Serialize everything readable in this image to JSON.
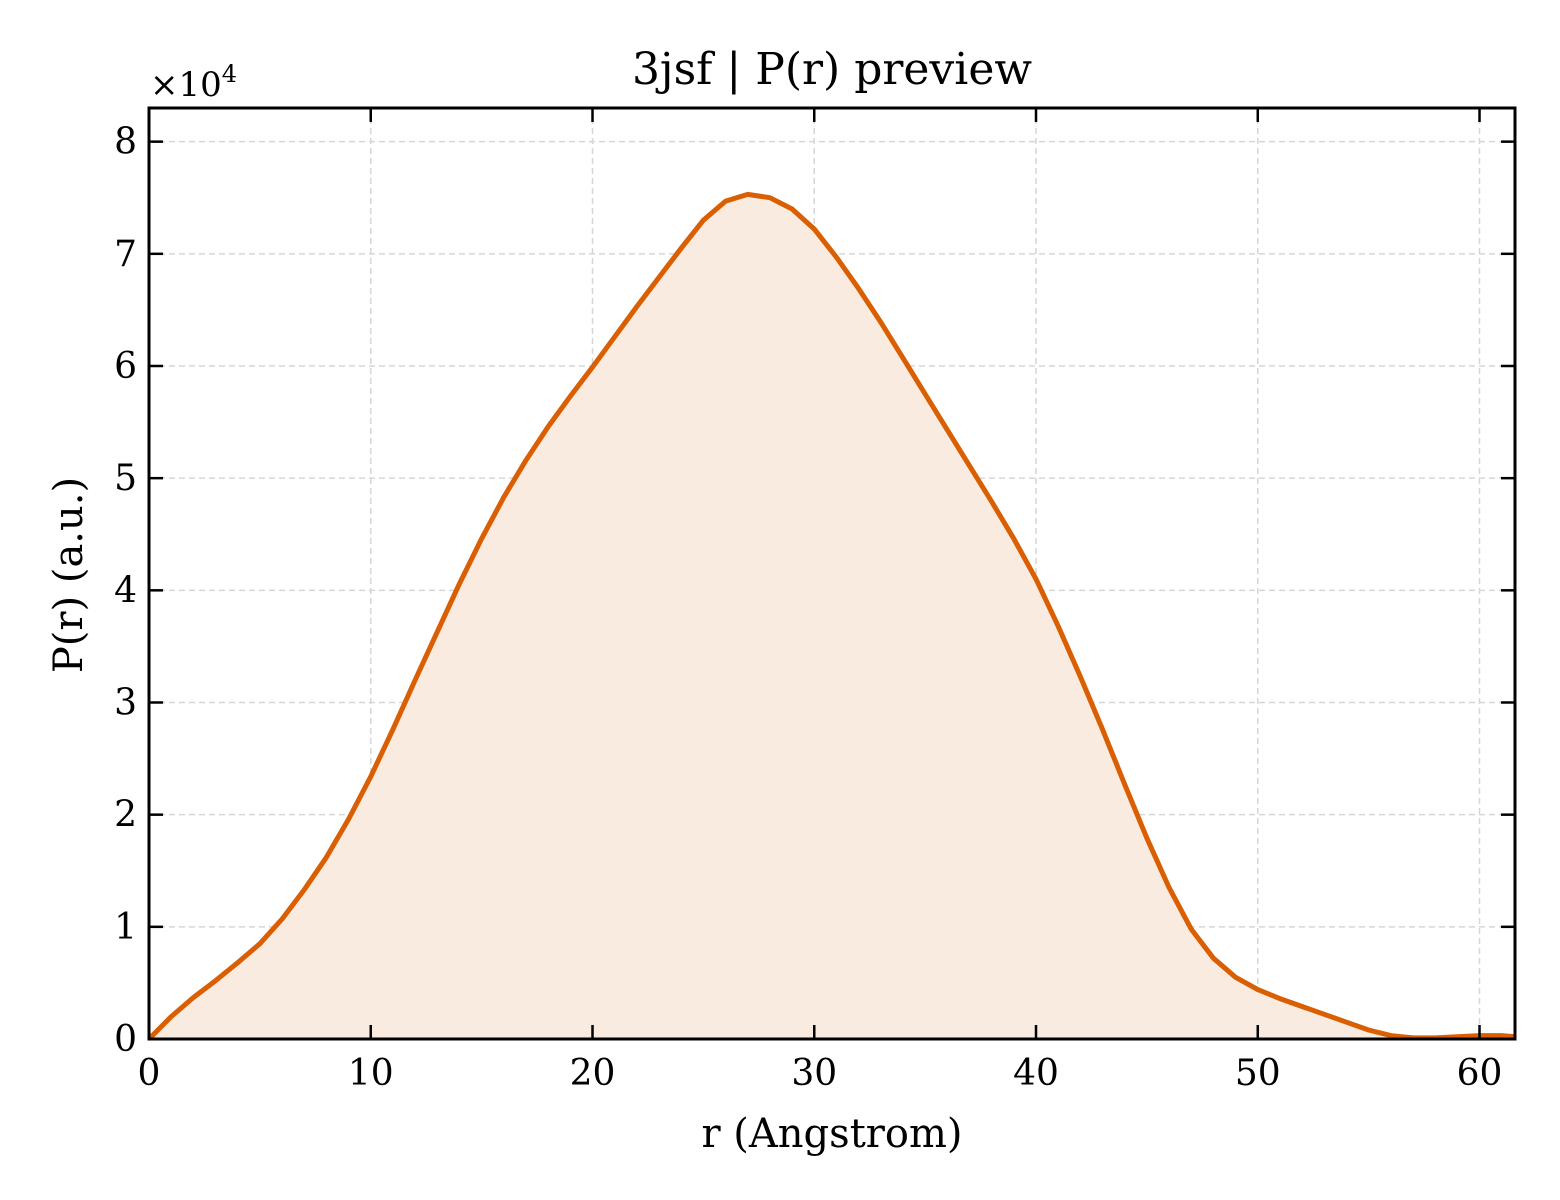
{
  "chart_data": {
    "type": "area",
    "title": "3jsf | P(r) preview",
    "xlabel": "r (Angstrom)",
    "ylabel": "P(r) (a.u.)",
    "y_multiplier_label": "×10",
    "y_multiplier_exponent": "4",
    "xlim": [
      0,
      61.6
    ],
    "ylim": [
      0,
      8.3
    ],
    "x_ticks": [
      0,
      10,
      20,
      30,
      40,
      50,
      60
    ],
    "y_ticks": [
      0,
      1,
      2,
      3,
      4,
      5,
      6,
      7,
      8
    ],
    "grid": true,
    "line_color": "#d95f02",
    "fill_color": "#f9ebe0",
    "series": [
      {
        "x": [
          0,
          1,
          2,
          3,
          4,
          5,
          6,
          7,
          8,
          9,
          10,
          11,
          12,
          13,
          14,
          15,
          16,
          17,
          18,
          19,
          20,
          21,
          22,
          23,
          24,
          25,
          26,
          27,
          28,
          29,
          30,
          31,
          32,
          33,
          34,
          35,
          36,
          37,
          38,
          39,
          40,
          41,
          42,
          43,
          44,
          45,
          46,
          47,
          48,
          49,
          50,
          51,
          52,
          53,
          54,
          55,
          56,
          57,
          58,
          59,
          60,
          61,
          61.6
        ],
        "y": [
          0,
          0.2,
          0.37,
          0.52,
          0.68,
          0.85,
          1.07,
          1.33,
          1.62,
          1.96,
          2.34,
          2.76,
          3.2,
          3.63,
          4.06,
          4.46,
          4.83,
          5.16,
          5.46,
          5.73,
          5.99,
          6.26,
          6.53,
          6.79,
          7.05,
          7.3,
          7.47,
          7.53,
          7.5,
          7.4,
          7.22,
          6.97,
          6.69,
          6.39,
          6.07,
          5.75,
          5.43,
          5.11,
          4.79,
          4.46,
          4.1,
          3.68,
          3.23,
          2.76,
          2.27,
          1.79,
          1.35,
          0.98,
          0.72,
          0.55,
          0.44,
          0.36,
          0.29,
          0.22,
          0.15,
          0.08,
          0.03,
          0.01,
          0.01,
          0.02,
          0.03,
          0.03,
          0.02
        ]
      }
    ]
  }
}
